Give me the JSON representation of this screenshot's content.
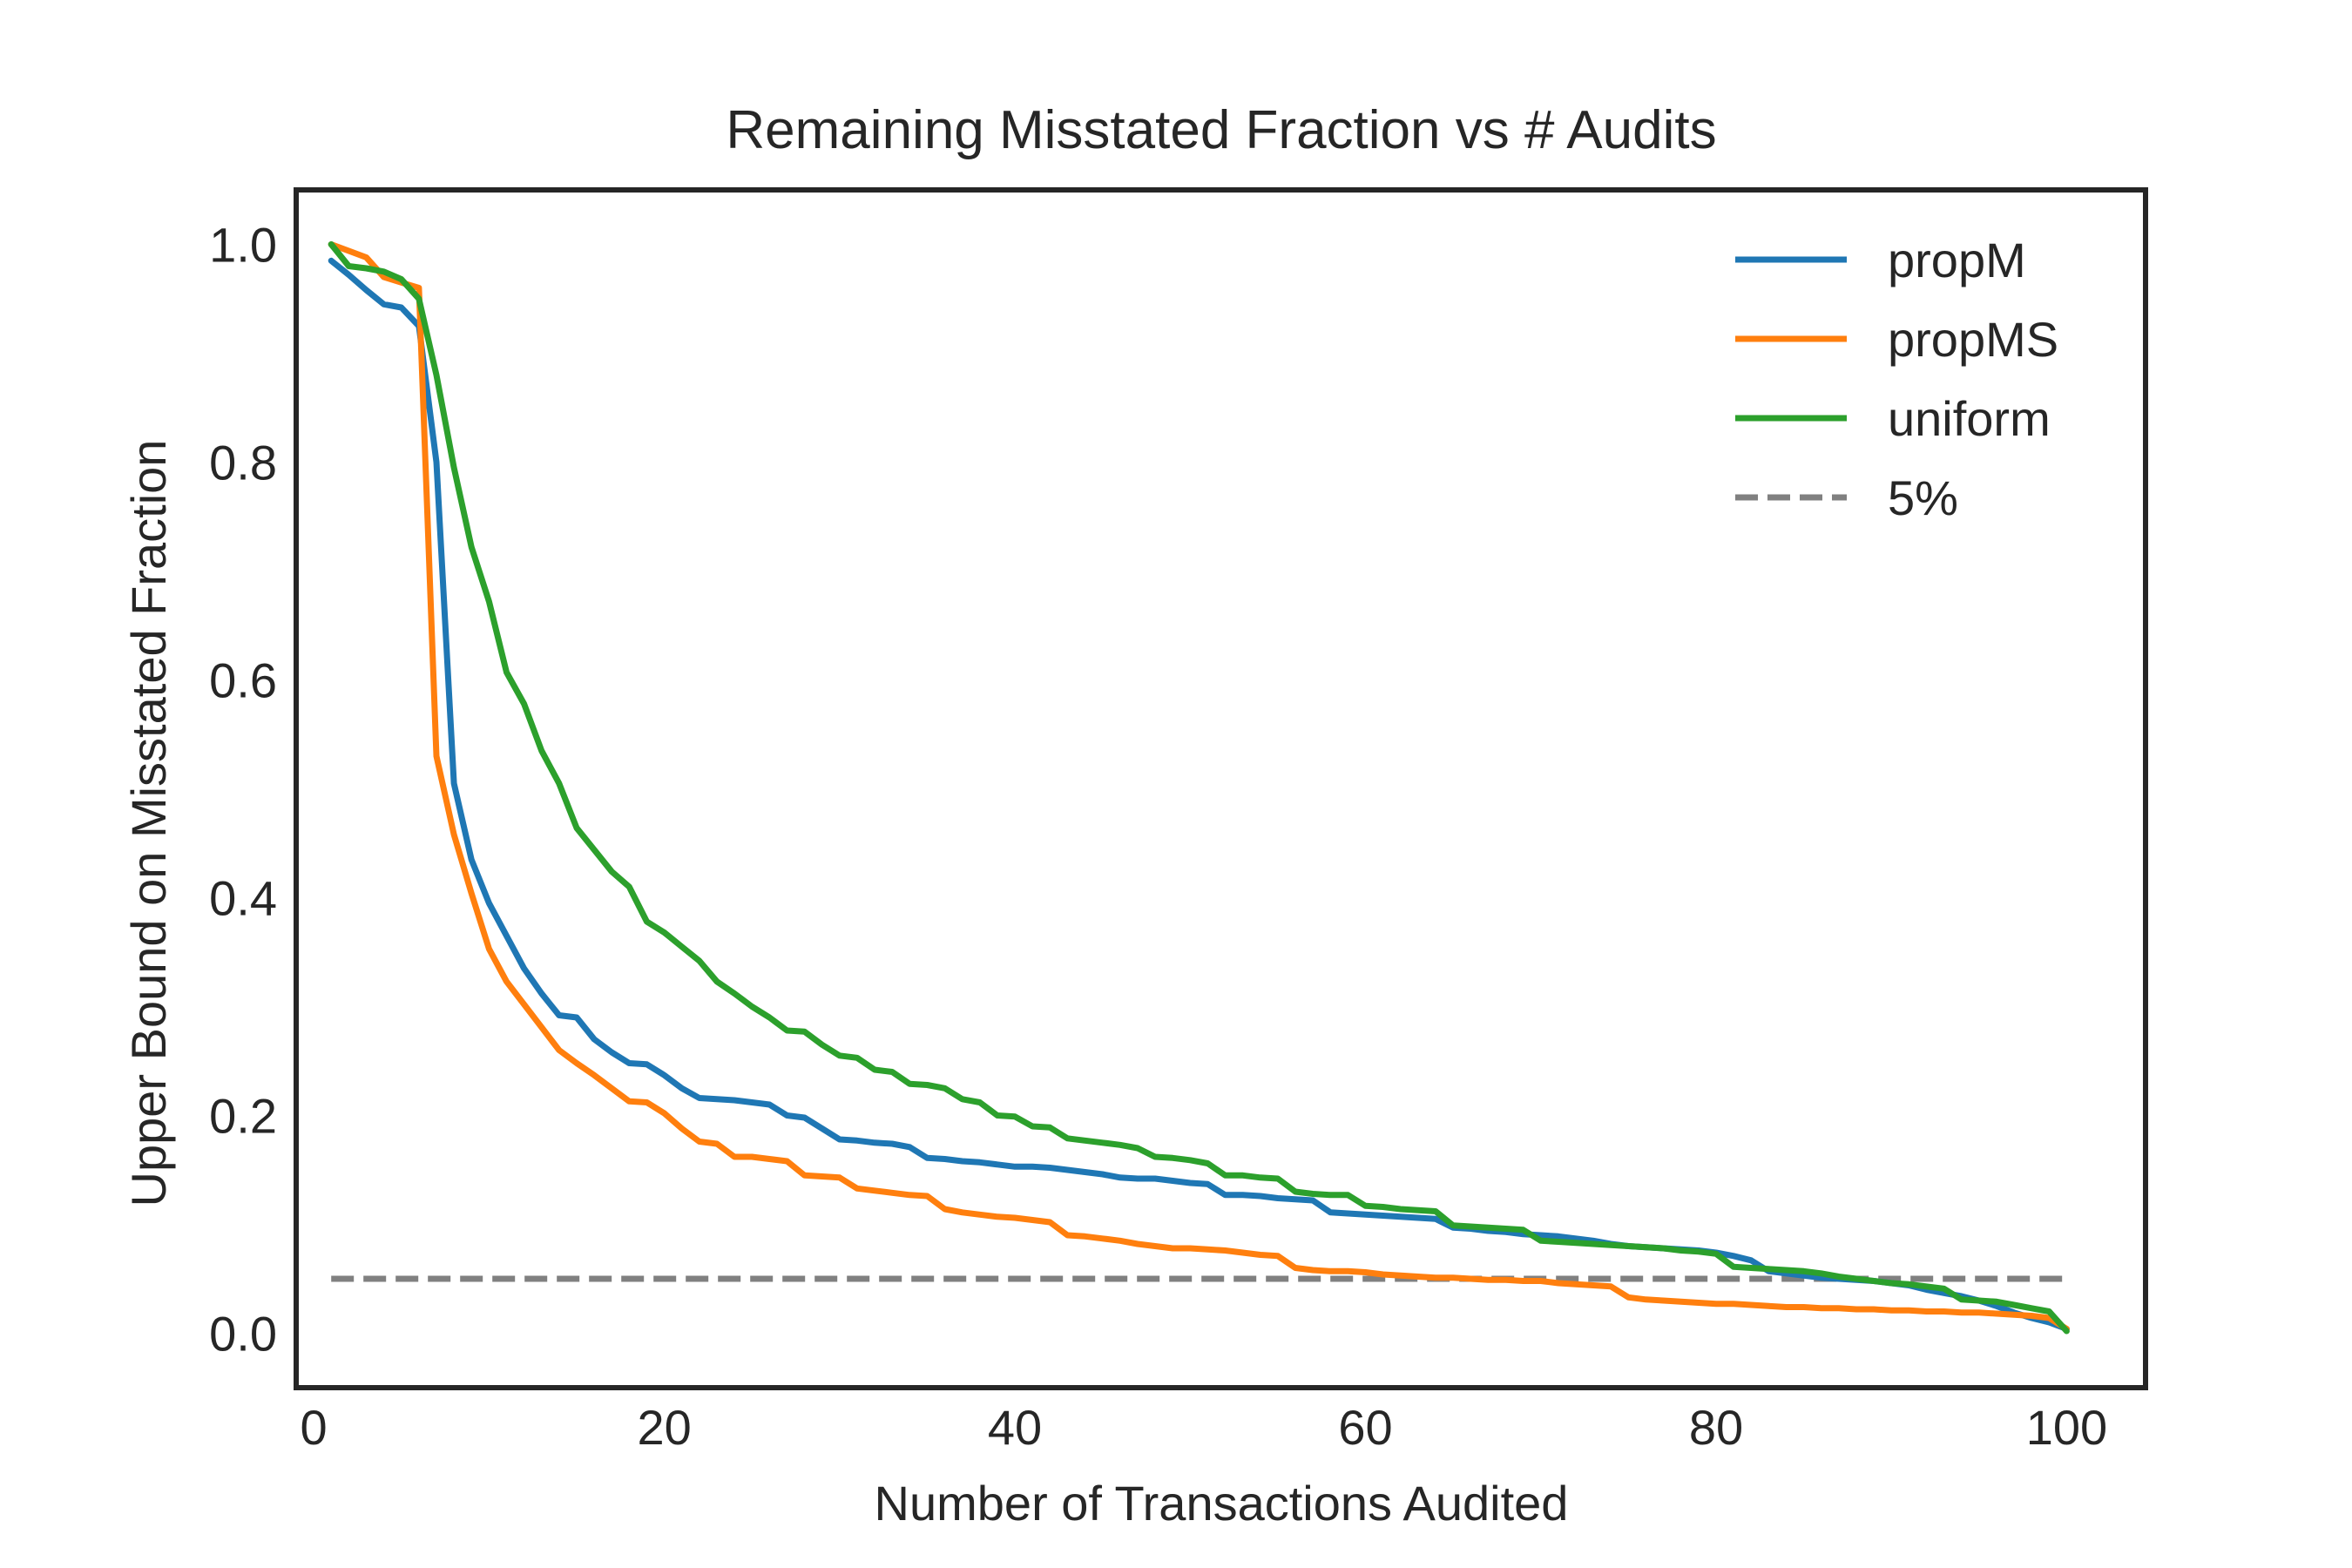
{
  "chart_data": {
    "type": "line",
    "title": "Remaining Misstated Fraction vs # Audits",
    "xlabel": "Number of Transactions Audited",
    "ylabel": "Upper Bound on Misstated Fraction",
    "xlim": [
      -1,
      104.5
    ],
    "ylim": [
      -0.05,
      1.05
    ],
    "xticks": [
      0,
      20,
      40,
      60,
      80,
      100
    ],
    "yticks": [
      0.0,
      0.2,
      0.4,
      0.6,
      0.8,
      1.0
    ],
    "xtick_labels": [
      "0",
      "20",
      "40",
      "60",
      "80",
      "100"
    ],
    "ytick_labels": [
      "0.0",
      "0.2",
      "0.4",
      "0.6",
      "0.8",
      "1.0"
    ],
    "grid": false,
    "legend_position": "top-right",
    "series": [
      {
        "name": "propM",
        "color": "#1f77b4",
        "style": "solid",
        "points": [
          [
            1,
            0.985
          ],
          [
            2,
            0.972
          ],
          [
            3,
            0.958
          ],
          [
            4,
            0.945
          ],
          [
            5,
            0.942
          ],
          [
            6,
            0.925
          ],
          [
            7,
            0.8
          ],
          [
            8,
            0.505
          ],
          [
            9,
            0.435
          ],
          [
            10,
            0.395
          ],
          [
            11,
            0.365
          ],
          [
            12,
            0.335
          ],
          [
            13,
            0.312
          ],
          [
            14,
            0.292
          ],
          [
            15,
            0.29
          ],
          [
            16,
            0.27
          ],
          [
            17,
            0.258
          ],
          [
            18,
            0.248
          ],
          [
            19,
            0.247
          ],
          [
            20,
            0.237
          ],
          [
            21,
            0.225
          ],
          [
            22,
            0.216
          ],
          [
            23,
            0.215
          ],
          [
            24,
            0.214
          ],
          [
            25,
            0.212
          ],
          [
            26,
            0.21
          ],
          [
            27,
            0.2
          ],
          [
            28,
            0.198
          ],
          [
            29,
            0.188
          ],
          [
            30,
            0.178
          ],
          [
            31,
            0.177
          ],
          [
            32,
            0.175
          ],
          [
            33,
            0.174
          ],
          [
            34,
            0.171
          ],
          [
            35,
            0.161
          ],
          [
            36,
            0.16
          ],
          [
            37,
            0.158
          ],
          [
            38,
            0.157
          ],
          [
            39,
            0.155
          ],
          [
            40,
            0.153
          ],
          [
            41,
            0.153
          ],
          [
            42,
            0.152
          ],
          [
            43,
            0.15
          ],
          [
            44,
            0.148
          ],
          [
            45,
            0.146
          ],
          [
            46,
            0.143
          ],
          [
            47,
            0.142
          ],
          [
            48,
            0.142
          ],
          [
            49,
            0.14
          ],
          [
            50,
            0.138
          ],
          [
            51,
            0.137
          ],
          [
            52,
            0.127
          ],
          [
            53,
            0.127
          ],
          [
            54,
            0.126
          ],
          [
            55,
            0.124
          ],
          [
            56,
            0.123
          ],
          [
            57,
            0.122
          ],
          [
            58,
            0.111
          ],
          [
            59,
            0.11
          ],
          [
            60,
            0.109
          ],
          [
            61,
            0.108
          ],
          [
            62,
            0.107
          ],
          [
            63,
            0.106
          ],
          [
            64,
            0.105
          ],
          [
            65,
            0.097
          ],
          [
            66,
            0.096
          ],
          [
            67,
            0.094
          ],
          [
            68,
            0.093
          ],
          [
            69,
            0.091
          ],
          [
            70,
            0.09
          ],
          [
            71,
            0.089
          ],
          [
            72,
            0.087
          ],
          [
            73,
            0.085
          ],
          [
            74,
            0.082
          ],
          [
            75,
            0.08
          ],
          [
            76,
            0.079
          ],
          [
            77,
            0.078
          ],
          [
            78,
            0.077
          ],
          [
            79,
            0.076
          ],
          [
            80,
            0.074
          ],
          [
            81,
            0.071
          ],
          [
            82,
            0.067
          ],
          [
            83,
            0.057
          ],
          [
            84,
            0.055
          ],
          [
            85,
            0.053
          ],
          [
            86,
            0.051
          ],
          [
            87,
            0.05
          ],
          [
            88,
            0.049
          ],
          [
            89,
            0.048
          ],
          [
            90,
            0.046
          ],
          [
            91,
            0.044
          ],
          [
            92,
            0.04
          ],
          [
            93,
            0.037
          ],
          [
            94,
            0.034
          ],
          [
            95,
            0.03
          ],
          [
            96,
            0.025
          ],
          [
            97,
            0.019
          ],
          [
            98,
            0.014
          ],
          [
            99,
            0.01
          ],
          [
            100,
            0.004
          ]
        ]
      },
      {
        "name": "propMS",
        "color": "#ff7f0e",
        "style": "solid",
        "points": [
          [
            1,
            1.0
          ],
          [
            2,
            0.994
          ],
          [
            3,
            0.988
          ],
          [
            4,
            0.97
          ],
          [
            5,
            0.965
          ],
          [
            6,
            0.96
          ],
          [
            7,
            0.53
          ],
          [
            8,
            0.458
          ],
          [
            9,
            0.404
          ],
          [
            10,
            0.353
          ],
          [
            11,
            0.323
          ],
          [
            12,
            0.302
          ],
          [
            13,
            0.281
          ],
          [
            14,
            0.26
          ],
          [
            15,
            0.248
          ],
          [
            16,
            0.237
          ],
          [
            17,
            0.225
          ],
          [
            18,
            0.213
          ],
          [
            19,
            0.212
          ],
          [
            20,
            0.202
          ],
          [
            21,
            0.188
          ],
          [
            22,
            0.176
          ],
          [
            23,
            0.174
          ],
          [
            24,
            0.162
          ],
          [
            25,
            0.162
          ],
          [
            26,
            0.16
          ],
          [
            27,
            0.158
          ],
          [
            28,
            0.145
          ],
          [
            29,
            0.144
          ],
          [
            30,
            0.143
          ],
          [
            31,
            0.133
          ],
          [
            32,
            0.131
          ],
          [
            33,
            0.129
          ],
          [
            34,
            0.127
          ],
          [
            35,
            0.126
          ],
          [
            36,
            0.114
          ],
          [
            37,
            0.111
          ],
          [
            38,
            0.109
          ],
          [
            39,
            0.107
          ],
          [
            40,
            0.106
          ],
          [
            41,
            0.104
          ],
          [
            42,
            0.102
          ],
          [
            43,
            0.09
          ],
          [
            44,
            0.089
          ],
          [
            45,
            0.087
          ],
          [
            46,
            0.085
          ],
          [
            47,
            0.082
          ],
          [
            48,
            0.08
          ],
          [
            49,
            0.078
          ],
          [
            50,
            0.078
          ],
          [
            51,
            0.077
          ],
          [
            52,
            0.076
          ],
          [
            53,
            0.074
          ],
          [
            54,
            0.072
          ],
          [
            55,
            0.071
          ],
          [
            56,
            0.06
          ],
          [
            57,
            0.058
          ],
          [
            58,
            0.057
          ],
          [
            59,
            0.057
          ],
          [
            60,
            0.056
          ],
          [
            61,
            0.054
          ],
          [
            62,
            0.053
          ],
          [
            63,
            0.052
          ],
          [
            64,
            0.051
          ],
          [
            65,
            0.051
          ],
          [
            66,
            0.05
          ],
          [
            67,
            0.049
          ],
          [
            68,
            0.049
          ],
          [
            69,
            0.048
          ],
          [
            70,
            0.048
          ],
          [
            71,
            0.046
          ],
          [
            72,
            0.045
          ],
          [
            73,
            0.044
          ],
          [
            74,
            0.043
          ],
          [
            75,
            0.033
          ],
          [
            76,
            0.031
          ],
          [
            77,
            0.03
          ],
          [
            78,
            0.029
          ],
          [
            79,
            0.028
          ],
          [
            80,
            0.027
          ],
          [
            81,
            0.027
          ],
          [
            82,
            0.026
          ],
          [
            83,
            0.025
          ],
          [
            84,
            0.024
          ],
          [
            85,
            0.024
          ],
          [
            86,
            0.023
          ],
          [
            87,
            0.023
          ],
          [
            88,
            0.022
          ],
          [
            89,
            0.022
          ],
          [
            90,
            0.021
          ],
          [
            91,
            0.021
          ],
          [
            92,
            0.02
          ],
          [
            93,
            0.02
          ],
          [
            94,
            0.019
          ],
          [
            95,
            0.019
          ],
          [
            96,
            0.018
          ],
          [
            97,
            0.017
          ],
          [
            98,
            0.016
          ],
          [
            99,
            0.014
          ],
          [
            100,
            0.004
          ]
        ]
      },
      {
        "name": "uniform",
        "color": "#2ca02c",
        "style": "solid",
        "points": [
          [
            1,
            1.0
          ],
          [
            2,
            0.98
          ],
          [
            3,
            0.978
          ],
          [
            4,
            0.975
          ],
          [
            5,
            0.968
          ],
          [
            6,
            0.95
          ],
          [
            7,
            0.88
          ],
          [
            8,
            0.795
          ],
          [
            9,
            0.722
          ],
          [
            10,
            0.672
          ],
          [
            11,
            0.607
          ],
          [
            12,
            0.578
          ],
          [
            13,
            0.535
          ],
          [
            14,
            0.505
          ],
          [
            15,
            0.464
          ],
          [
            16,
            0.444
          ],
          [
            17,
            0.424
          ],
          [
            18,
            0.41
          ],
          [
            19,
            0.378
          ],
          [
            20,
            0.368
          ],
          [
            21,
            0.355
          ],
          [
            22,
            0.342
          ],
          [
            23,
            0.323
          ],
          [
            24,
            0.312
          ],
          [
            25,
            0.3
          ],
          [
            26,
            0.29
          ],
          [
            27,
            0.278
          ],
          [
            28,
            0.277
          ],
          [
            29,
            0.265
          ],
          [
            30,
            0.255
          ],
          [
            31,
            0.253
          ],
          [
            32,
            0.242
          ],
          [
            33,
            0.24
          ],
          [
            34,
            0.229
          ],
          [
            35,
            0.228
          ],
          [
            36,
            0.225
          ],
          [
            37,
            0.215
          ],
          [
            38,
            0.212
          ],
          [
            39,
            0.2
          ],
          [
            40,
            0.199
          ],
          [
            41,
            0.19
          ],
          [
            42,
            0.189
          ],
          [
            43,
            0.179
          ],
          [
            44,
            0.177
          ],
          [
            45,
            0.175
          ],
          [
            46,
            0.173
          ],
          [
            47,
            0.17
          ],
          [
            48,
            0.162
          ],
          [
            49,
            0.161
          ],
          [
            50,
            0.159
          ],
          [
            51,
            0.156
          ],
          [
            52,
            0.145
          ],
          [
            53,
            0.145
          ],
          [
            54,
            0.143
          ],
          [
            55,
            0.142
          ],
          [
            56,
            0.13
          ],
          [
            57,
            0.128
          ],
          [
            58,
            0.127
          ],
          [
            59,
            0.127
          ],
          [
            60,
            0.117
          ],
          [
            61,
            0.116
          ],
          [
            62,
            0.114
          ],
          [
            63,
            0.113
          ],
          [
            64,
            0.112
          ],
          [
            65,
            0.099
          ],
          [
            66,
            0.098
          ],
          [
            67,
            0.097
          ],
          [
            68,
            0.096
          ],
          [
            69,
            0.095
          ],
          [
            70,
            0.085
          ],
          [
            71,
            0.084
          ],
          [
            72,
            0.083
          ],
          [
            73,
            0.082
          ],
          [
            74,
            0.081
          ],
          [
            75,
            0.08
          ],
          [
            76,
            0.079
          ],
          [
            77,
            0.078
          ],
          [
            78,
            0.076
          ],
          [
            79,
            0.075
          ],
          [
            80,
            0.073
          ],
          [
            81,
            0.061
          ],
          [
            82,
            0.06
          ],
          [
            83,
            0.059
          ],
          [
            84,
            0.058
          ],
          [
            85,
            0.057
          ],
          [
            86,
            0.055
          ],
          [
            87,
            0.052
          ],
          [
            88,
            0.05
          ],
          [
            89,
            0.048
          ],
          [
            90,
            0.046
          ],
          [
            91,
            0.045
          ],
          [
            92,
            0.043
          ],
          [
            93,
            0.041
          ],
          [
            94,
            0.031
          ],
          [
            95,
            0.03
          ],
          [
            96,
            0.029
          ],
          [
            97,
            0.026
          ],
          [
            98,
            0.023
          ],
          [
            99,
            0.02
          ],
          [
            100,
            0.002
          ]
        ]
      },
      {
        "name": "5%",
        "color": "#808080",
        "style": "dashed",
        "points": [
          [
            1,
            0.05
          ],
          [
            100,
            0.05
          ]
        ]
      }
    ]
  }
}
